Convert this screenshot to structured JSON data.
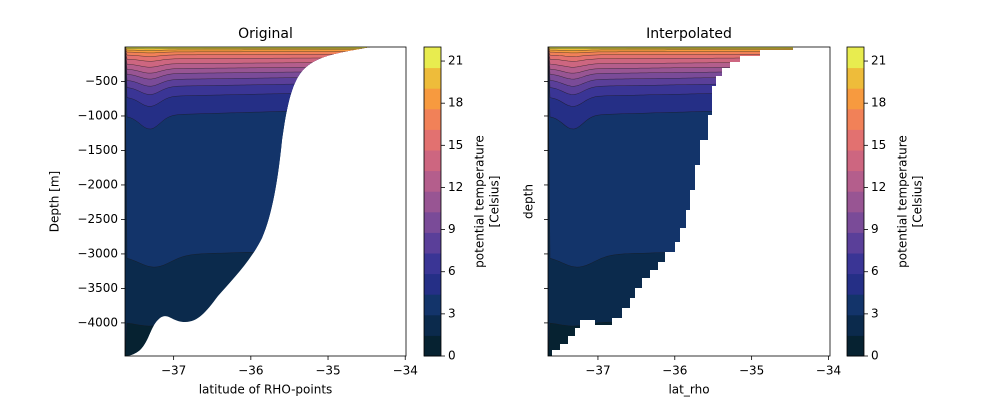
{
  "chart_data": [
    {
      "type": "contourf",
      "title": "Original",
      "xlabel": "latitude of RHO-points",
      "ylabel": "Depth [m]",
      "xlim": [
        -37.63,
        -33.99
      ],
      "xticks": [
        {
          "value": -37,
          "label": "−37"
        },
        {
          "value": -36,
          "label": "−36"
        },
        {
          "value": -35,
          "label": "−35"
        },
        {
          "value": -34,
          "label": "−34"
        }
      ],
      "ylim": [
        -4480,
        0
      ],
      "yticks": [
        {
          "value": -4000,
          "label": "−4000"
        },
        {
          "value": -3500,
          "label": "−3500"
        },
        {
          "value": -3000,
          "label": "−3000"
        },
        {
          "value": -2500,
          "label": "−2500"
        },
        {
          "value": -2000,
          "label": "−2000"
        },
        {
          "value": -1500,
          "label": "−1500"
        },
        {
          "value": -1000,
          "label": "−1000"
        },
        {
          "value": -500,
          "label": "−500"
        }
      ],
      "ytick_labels": true,
      "colorbar": {
        "label": [
          "potential temperature",
          "[Celsius]"
        ],
        "lim": [
          0,
          22
        ],
        "ticks": [
          0,
          3,
          6,
          9,
          12,
          15,
          18,
          21
        ],
        "colors": [
          "#062231",
          "#0b2a4c",
          "#13346a",
          "#252f86",
          "#3a3595",
          "#5a3f99",
          "#7a4b98",
          "#985593",
          "#b45e8c",
          "#cd6680",
          "#e27170",
          "#f18158",
          "#f79a3f",
          "#eebc3a",
          "#e8ec4f"
        ]
      }
    },
    {
      "type": "contourf",
      "title": "Interpolated",
      "xlabel": "lat_rho",
      "ylabel": "depth",
      "xlim": [
        -37.65,
        -33.98
      ],
      "xticks": [
        {
          "value": -37,
          "label": "−37"
        },
        {
          "value": -36,
          "label": "−36"
        },
        {
          "value": -35,
          "label": "−35"
        },
        {
          "value": -34,
          "label": "−34"
        }
      ],
      "ylim": [
        -4480,
        0
      ],
      "yticks": [
        -4000,
        -3500,
        -3000,
        -2500,
        -2000,
        -1500,
        -1000,
        -500
      ],
      "ytick_labels": false,
      "colorbar": {
        "label": [
          "potential temperature",
          "[Celsius]"
        ],
        "lim": [
          0,
          22
        ],
        "ticks": [
          0,
          3,
          6,
          9,
          12,
          15,
          18,
          21
        ],
        "colors": [
          "#062231",
          "#0b2a4c",
          "#13346a",
          "#252f86",
          "#3a3595",
          "#5a3f99",
          "#7a4b98",
          "#985593",
          "#b45e8c",
          "#cd6680",
          "#e27170",
          "#f18158",
          "#f79a3f",
          "#eebc3a",
          "#e8ec4f"
        ]
      }
    }
  ]
}
